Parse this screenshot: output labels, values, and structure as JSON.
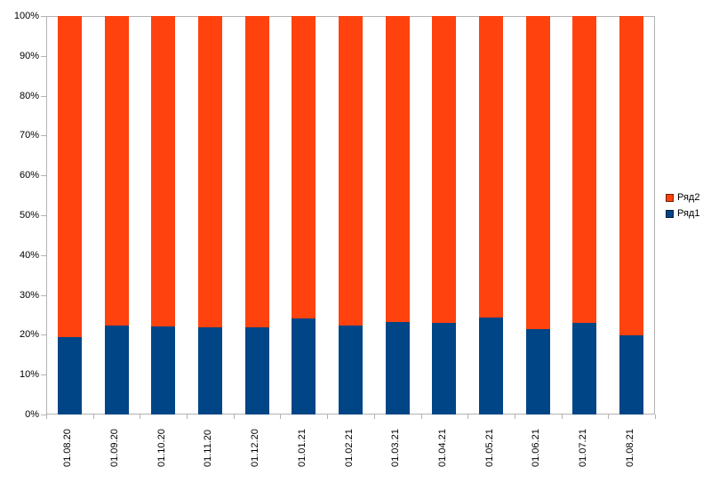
{
  "chart_data": {
    "type": "bar",
    "stacked": true,
    "percent_stacked": true,
    "title": "",
    "xlabel": "",
    "ylabel": "",
    "categories": [
      "01.08.20",
      "01.09.20",
      "01.10.20",
      "01.11.20",
      "01.12.20",
      "01.01.21",
      "01.02.21",
      "01.03.21",
      "01.04.21",
      "01.05.21",
      "01.06.21",
      "01.07.21",
      "01.08.21"
    ],
    "series": [
      {
        "name": "Ряд1",
        "color": "#004586",
        "values": [
          19.4,
          22.4,
          22.1,
          21.9,
          21.8,
          24.2,
          22.3,
          23.3,
          23.1,
          24.3,
          21.4,
          23.1,
          19.9
        ]
      },
      {
        "name": "Ряд2",
        "color": "#FF420E",
        "values": [
          80.6,
          77.6,
          77.9,
          78.1,
          78.2,
          75.8,
          77.7,
          76.7,
          76.9,
          75.7,
          78.6,
          76.9,
          80.1
        ]
      }
    ],
    "ylim": [
      0,
      100
    ],
    "y_ticks": [
      "0%",
      "10%",
      "20%",
      "30%",
      "40%",
      "50%",
      "60%",
      "70%",
      "80%",
      "90%",
      "100%"
    ],
    "grid": false,
    "legend_position": "right",
    "legend": [
      "Ряд2",
      "Ряд1"
    ]
  },
  "colors": {
    "series1_blue": "#004586",
    "series2_orange": "#FF420E",
    "axis_line": "#b3b3b3",
    "text": "#000000",
    "background": "#ffffff"
  }
}
